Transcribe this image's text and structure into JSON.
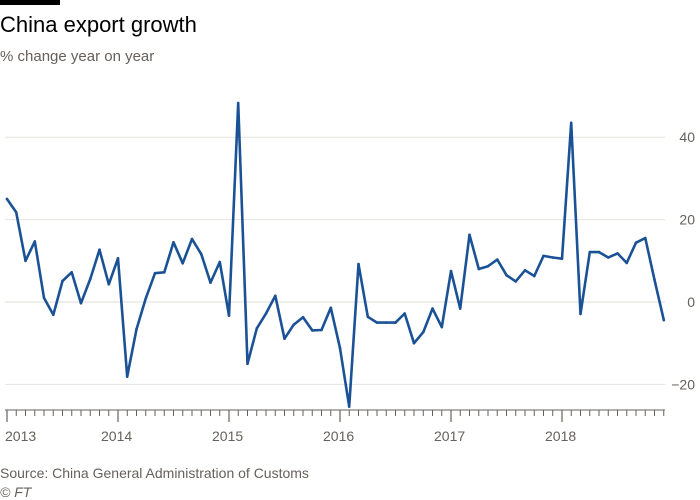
{
  "header": {
    "title": "China export growth",
    "subtitle": "% change year on year"
  },
  "footer": {
    "source": "Source: China General Administration of Customs",
    "credit": "© FT"
  },
  "colors": {
    "line": "#1b5296",
    "grid": "#e6e3df",
    "axis": "#66605c",
    "tick_text": "#66605c"
  },
  "chart_data": {
    "type": "line",
    "title": "China export growth",
    "subtitle": "% change year on year",
    "xlabel": "",
    "ylabel": "",
    "ylim": [
      -27.5,
      50
    ],
    "y_ticks": [
      40,
      20,
      0,
      -20
    ],
    "x_tick_labels": [
      "2013",
      "2014",
      "2015",
      "2016",
      "2017",
      "2018"
    ],
    "x_tick_positions": [
      2013,
      2014,
      2015,
      2016,
      2017,
      2018
    ],
    "xlim": [
      2012.95,
      2019.0
    ],
    "grid": true,
    "y_axis_side": "right",
    "series": [
      {
        "values": [
          {
            "x": 2013.0,
            "y": 25.0
          },
          {
            "x": 2013.083,
            "y": 21.8
          },
          {
            "x": 2013.167,
            "y": 10.0
          },
          {
            "x": 2013.25,
            "y": 14.7
          },
          {
            "x": 2013.333,
            "y": 1.0
          },
          {
            "x": 2013.417,
            "y": -3.1
          },
          {
            "x": 2013.5,
            "y": 5.1
          },
          {
            "x": 2013.583,
            "y": 7.2
          },
          {
            "x": 2013.667,
            "y": -0.3
          },
          {
            "x": 2013.75,
            "y": 5.6
          },
          {
            "x": 2013.833,
            "y": 12.7
          },
          {
            "x": 2013.917,
            "y": 4.3
          },
          {
            "x": 2014.0,
            "y": 10.6
          },
          {
            "x": 2014.083,
            "y": -18.1
          },
          {
            "x": 2014.167,
            "y": -6.6
          },
          {
            "x": 2014.25,
            "y": 0.9
          },
          {
            "x": 2014.333,
            "y": 7.0
          },
          {
            "x": 2014.417,
            "y": 7.2
          },
          {
            "x": 2014.5,
            "y": 14.5
          },
          {
            "x": 2014.583,
            "y": 9.4
          },
          {
            "x": 2014.667,
            "y": 15.3
          },
          {
            "x": 2014.75,
            "y": 11.6
          },
          {
            "x": 2014.833,
            "y": 4.7
          },
          {
            "x": 2014.917,
            "y": 9.7
          },
          {
            "x": 2015.0,
            "y": -3.3
          },
          {
            "x": 2015.083,
            "y": 48.3
          },
          {
            "x": 2015.167,
            "y": -15.0
          },
          {
            "x": 2015.25,
            "y": -6.4
          },
          {
            "x": 2015.333,
            "y": -2.8
          },
          {
            "x": 2015.417,
            "y": 1.5
          },
          {
            "x": 2015.5,
            "y": -8.9
          },
          {
            "x": 2015.583,
            "y": -5.5
          },
          {
            "x": 2015.667,
            "y": -3.7
          },
          {
            "x": 2015.75,
            "y": -6.9
          },
          {
            "x": 2015.833,
            "y": -6.8
          },
          {
            "x": 2015.917,
            "y": -1.4
          },
          {
            "x": 2016.0,
            "y": -11.2
          },
          {
            "x": 2016.083,
            "y": -25.4
          },
          {
            "x": 2016.167,
            "y": 9.2
          },
          {
            "x": 2016.25,
            "y": -3.6
          },
          {
            "x": 2016.333,
            "y": -5.0
          },
          {
            "x": 2016.417,
            "y": -5.0
          },
          {
            "x": 2016.5,
            "y": -5.0
          },
          {
            "x": 2016.583,
            "y": -2.8
          },
          {
            "x": 2016.667,
            "y": -10.0
          },
          {
            "x": 2016.75,
            "y": -7.3
          },
          {
            "x": 2016.833,
            "y": -1.6
          },
          {
            "x": 2016.917,
            "y": -6.1
          },
          {
            "x": 2017.0,
            "y": 7.5
          },
          {
            "x": 2017.083,
            "y": -1.6
          },
          {
            "x": 2017.167,
            "y": 16.3
          },
          {
            "x": 2017.25,
            "y": 8.0
          },
          {
            "x": 2017.333,
            "y": 8.7
          },
          {
            "x": 2017.417,
            "y": 10.3
          },
          {
            "x": 2017.5,
            "y": 6.5
          },
          {
            "x": 2017.583,
            "y": 5.0
          },
          {
            "x": 2017.667,
            "y": 7.7
          },
          {
            "x": 2017.75,
            "y": 6.3
          },
          {
            "x": 2017.833,
            "y": 11.2
          },
          {
            "x": 2017.917,
            "y": 10.8
          },
          {
            "x": 2018.0,
            "y": 10.5
          },
          {
            "x": 2018.083,
            "y": 43.5
          },
          {
            "x": 2018.167,
            "y": -2.9
          },
          {
            "x": 2018.25,
            "y": 12.1
          },
          {
            "x": 2018.333,
            "y": 12.1
          },
          {
            "x": 2018.417,
            "y": 10.8
          },
          {
            "x": 2018.5,
            "y": 11.8
          },
          {
            "x": 2018.583,
            "y": 9.5
          },
          {
            "x": 2018.667,
            "y": 14.4
          },
          {
            "x": 2018.75,
            "y": 15.5
          },
          {
            "x": 2018.833,
            "y": 5.4
          },
          {
            "x": 2018.917,
            "y": -4.4
          }
        ]
      }
    ]
  }
}
